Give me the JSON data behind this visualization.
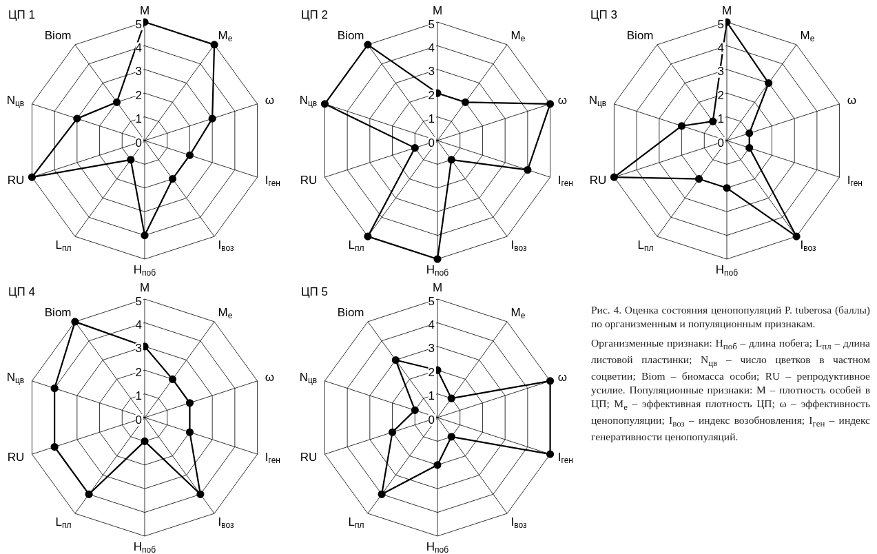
{
  "chart_data": [
    {
      "type": "radar",
      "title": "ЦП 1",
      "categories": [
        "M",
        "M$_{е}$",
        "ω",
        "I$_{ген}$",
        "I$_{воз}$",
        "H$_{поб}$",
        "L$_{пл}$",
        "RU",
        "N$_{цв}$",
        "Biom"
      ],
      "ylim": [
        0,
        5
      ],
      "yticks": [
        0,
        1,
        2,
        3,
        4,
        5
      ],
      "grid": true,
      "marker": "circle",
      "series": [
        {
          "color": "#000000",
          "values": [
            5,
            5,
            3,
            2,
            2,
            4,
            1,
            5,
            3,
            2
          ]
        }
      ]
    },
    {
      "type": "radar",
      "title": "ЦП 2",
      "categories": [
        "M",
        "M$_{е}$",
        "ω",
        "I$_{ген}$",
        "I$_{воз}$",
        "H$_{поб}$",
        "L$_{пл}$",
        "RU",
        "N$_{цв}$",
        "Biom"
      ],
      "ylim": [
        0,
        5
      ],
      "yticks": [
        0,
        1,
        2,
        3,
        4,
        5
      ],
      "grid": true,
      "marker": "circle",
      "series": [
        {
          "color": "#000000",
          "values": [
            2,
            2,
            5,
            4,
            1,
            5,
            5,
            1,
            5,
            5
          ]
        }
      ]
    },
    {
      "type": "radar",
      "title": "ЦП 3",
      "categories": [
        "M",
        "M$_{е}$",
        "ω",
        "I$_{ген}$",
        "I$_{воз}$",
        "H$_{поб}$",
        "L$_{пл}$",
        "RU",
        "N$_{цв}$",
        "Biom"
      ],
      "ylim": [
        0,
        5
      ],
      "yticks": [
        0,
        1,
        2,
        3,
        4,
        5
      ],
      "grid": true,
      "marker": "circle",
      "series": [
        {
          "color": "#000000",
          "values": [
            5,
            3,
            1,
            1,
            5,
            2,
            2,
            5,
            2,
            1
          ]
        }
      ]
    },
    {
      "type": "radar",
      "title": "ЦП 4",
      "categories": [
        "M",
        "M$_{е}$",
        "ω",
        "I$_{ген}$",
        "I$_{воз}$",
        "H$_{поб}$",
        "L$_{пл}$",
        "RU",
        "N$_{цв}$",
        "Biom"
      ],
      "ylim": [
        0,
        5
      ],
      "yticks": [
        0,
        1,
        2,
        3,
        4,
        5
      ],
      "grid": true,
      "marker": "circle",
      "series": [
        {
          "color": "#000000",
          "values": [
            3,
            2,
            2,
            2,
            4,
            1,
            4,
            4,
            4,
            5
          ]
        }
      ]
    },
    {
      "type": "radar",
      "title": "ЦП 5",
      "categories": [
        "M",
        "M$_{е}$",
        "ω",
        "I$_{ген}$",
        "I$_{воз}$",
        "H$_{поб}$",
        "L$_{пл}$",
        "RU",
        "N$_{цв}$",
        "Biom"
      ],
      "ylim": [
        0,
        5
      ],
      "yticks": [
        0,
        1,
        2,
        3,
        4,
        5
      ],
      "grid": true,
      "marker": "circle",
      "series": [
        {
          "color": "#000000",
          "values": [
            2,
            1,
            5,
            5,
            1,
            2,
            4,
            2,
            1,
            3
          ]
        }
      ]
    },
    {
      "type": "other",
      "title": "Рис. 4. Оценка состояния ценопопуляций P. tuberosa (баллы) по организменным и популяционным признакам.",
      "annotations": [
        "Организменные признаки: H$_{поб}$ – длина побега; L$_{пл}$ – длина листовой пластинки; N$_{цв}$ – число цветков в частном соцветии; Biom – биомасса особи; RU – репродуктивное усилие. Популяционные признаки: M – плотность особей в ЦП; M$_{е}$ – эффективная плотность ЦП; ω – эффективность ценопопуляции; I$_{воз}$ – индекс возобновления; I$_{ген}$ – индекс генеративности ценопопуляций."
      ]
    }
  ]
}
